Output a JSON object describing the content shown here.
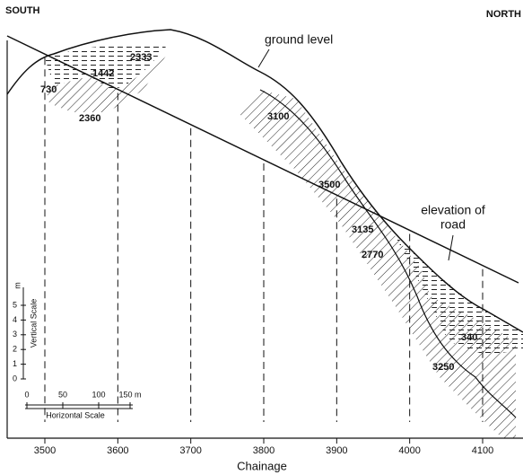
{
  "corner_labels": {
    "left": "SOUTH",
    "right": "NORTH"
  },
  "annotations": {
    "ground_level": "ground level",
    "road": [
      "elevation of",
      "road"
    ]
  },
  "zone_labels": [
    "2333",
    "1442",
    "730",
    "2360",
    "3100",
    "3500",
    "3135",
    "2770",
    "340",
    "3250"
  ],
  "x_axis": {
    "title": "Chainage",
    "ticks": [
      3500,
      3600,
      3700,
      3800,
      3900,
      4000,
      4100
    ]
  },
  "vertical_scale": {
    "title": "Vertical Scale",
    "ticks": [
      0,
      1,
      2,
      3,
      4,
      5
    ],
    "unit": "m"
  },
  "horizontal_scale": {
    "title": "Horizontal Scale",
    "ticks": [
      "0",
      "50",
      "100",
      "150 m"
    ]
  }
}
